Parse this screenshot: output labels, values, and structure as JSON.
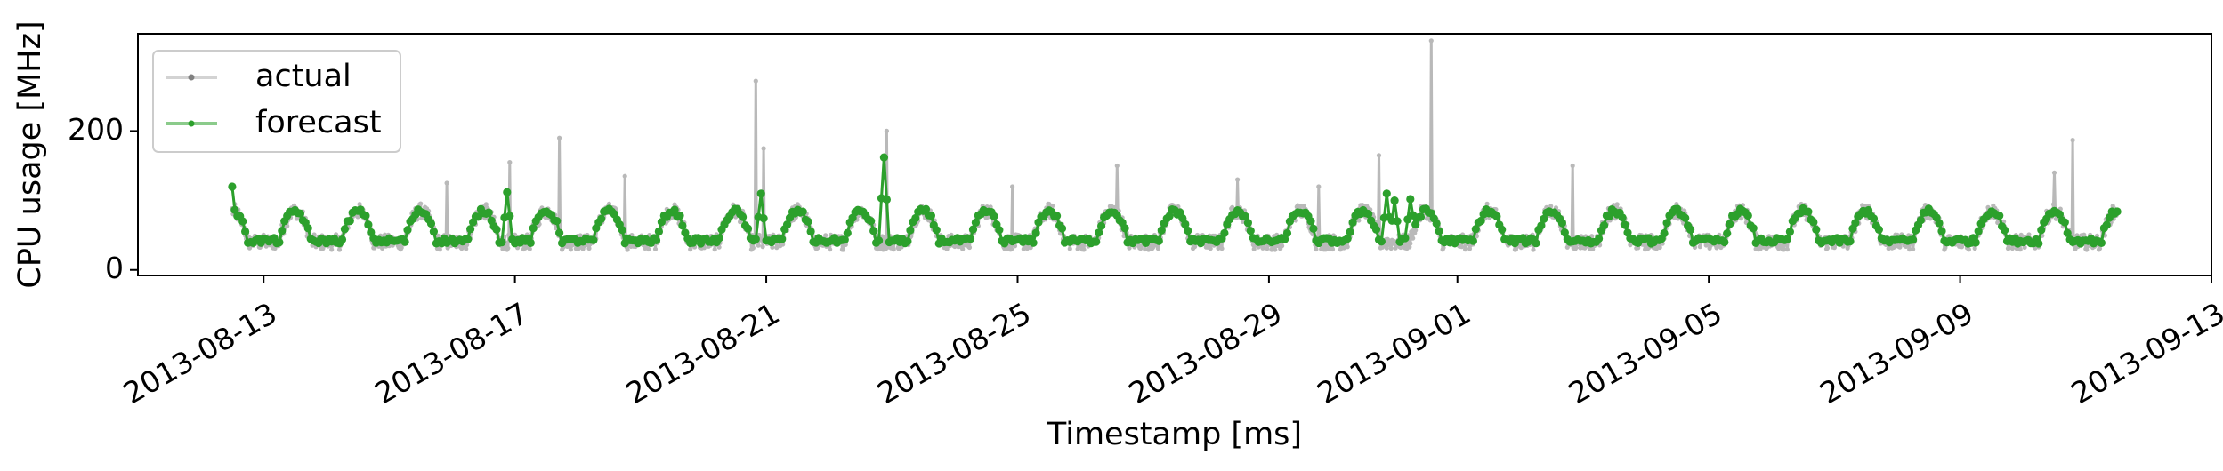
{
  "chart_data": {
    "type": "line",
    "xlabel": "Timestamp [ms]",
    "ylabel": "CPU usage [MHz]",
    "xlim": [
      "2013-08-11",
      "2013-09-13"
    ],
    "ylim": [
      -8,
      340
    ],
    "x_ticks": [
      "2013-08-13",
      "2013-08-17",
      "2013-08-21",
      "2013-08-25",
      "2013-08-29",
      "2013-09-01",
      "2013-09-05",
      "2013-09-09",
      "2013-09-13"
    ],
    "y_ticks": [
      0,
      200
    ],
    "y_tick_labels": [
      "0",
      "200"
    ],
    "grid": false,
    "legend_position": "top-left",
    "series": [
      {
        "name": "actual",
        "color": "#808080",
        "style": "line-with-dots, semi-transparent",
        "x_start": "2013-08-12T12:00",
        "x_end": "2013-09-11T12:00",
        "daily_profile_mhz": {
          "min": 40,
          "max": 85
        },
        "range": [
          5,
          330
        ],
        "spikes": [
          {
            "x": "2013-08-15T22:00",
            "y": 125
          },
          {
            "x": "2013-08-16T22:00",
            "y": 155
          },
          {
            "x": "2013-08-17T17:00",
            "y": 190
          },
          {
            "x": "2013-08-18T18:00",
            "y": 135
          },
          {
            "x": "2013-08-20T20:00",
            "y": 272
          },
          {
            "x": "2013-08-20T23:00",
            "y": 175
          },
          {
            "x": "2013-08-22T22:00",
            "y": 200
          },
          {
            "x": "2013-08-24T22:00",
            "y": 120
          },
          {
            "x": "2013-08-26T14:00",
            "y": 150
          },
          {
            "x": "2013-08-28T12:00",
            "y": 130
          },
          {
            "x": "2013-08-29T19:00",
            "y": 120
          },
          {
            "x": "2013-08-30T18:00",
            "y": 165
          },
          {
            "x": "2013-08-31T14:00",
            "y": 330
          },
          {
            "x": "2013-09-02T20:00",
            "y": 150
          },
          {
            "x": "2013-09-10T12:00",
            "y": 140
          },
          {
            "x": "2013-09-10T19:00",
            "y": 187
          }
        ]
      },
      {
        "name": "forecast",
        "color": "#2ca02c",
        "style": "line-with-dots",
        "x_start": "2013-08-12T12:00",
        "x_end": "2013-09-11T12:00",
        "daily_profile_mhz": {
          "min": 42,
          "max": 85
        },
        "first_value": 120,
        "peaks": [
          {
            "x": "2013-08-16T21:00",
            "y": 112
          },
          {
            "x": "2013-08-20T22:00",
            "y": 110
          },
          {
            "x": "2013-08-22T21:00",
            "y": 162
          },
          {
            "x": "2013-08-30T21:00",
            "y": 110
          },
          {
            "x": "2013-08-31T00:00",
            "y": 100
          },
          {
            "x": "2013-08-31T06:00",
            "y": 102
          }
        ]
      }
    ]
  }
}
